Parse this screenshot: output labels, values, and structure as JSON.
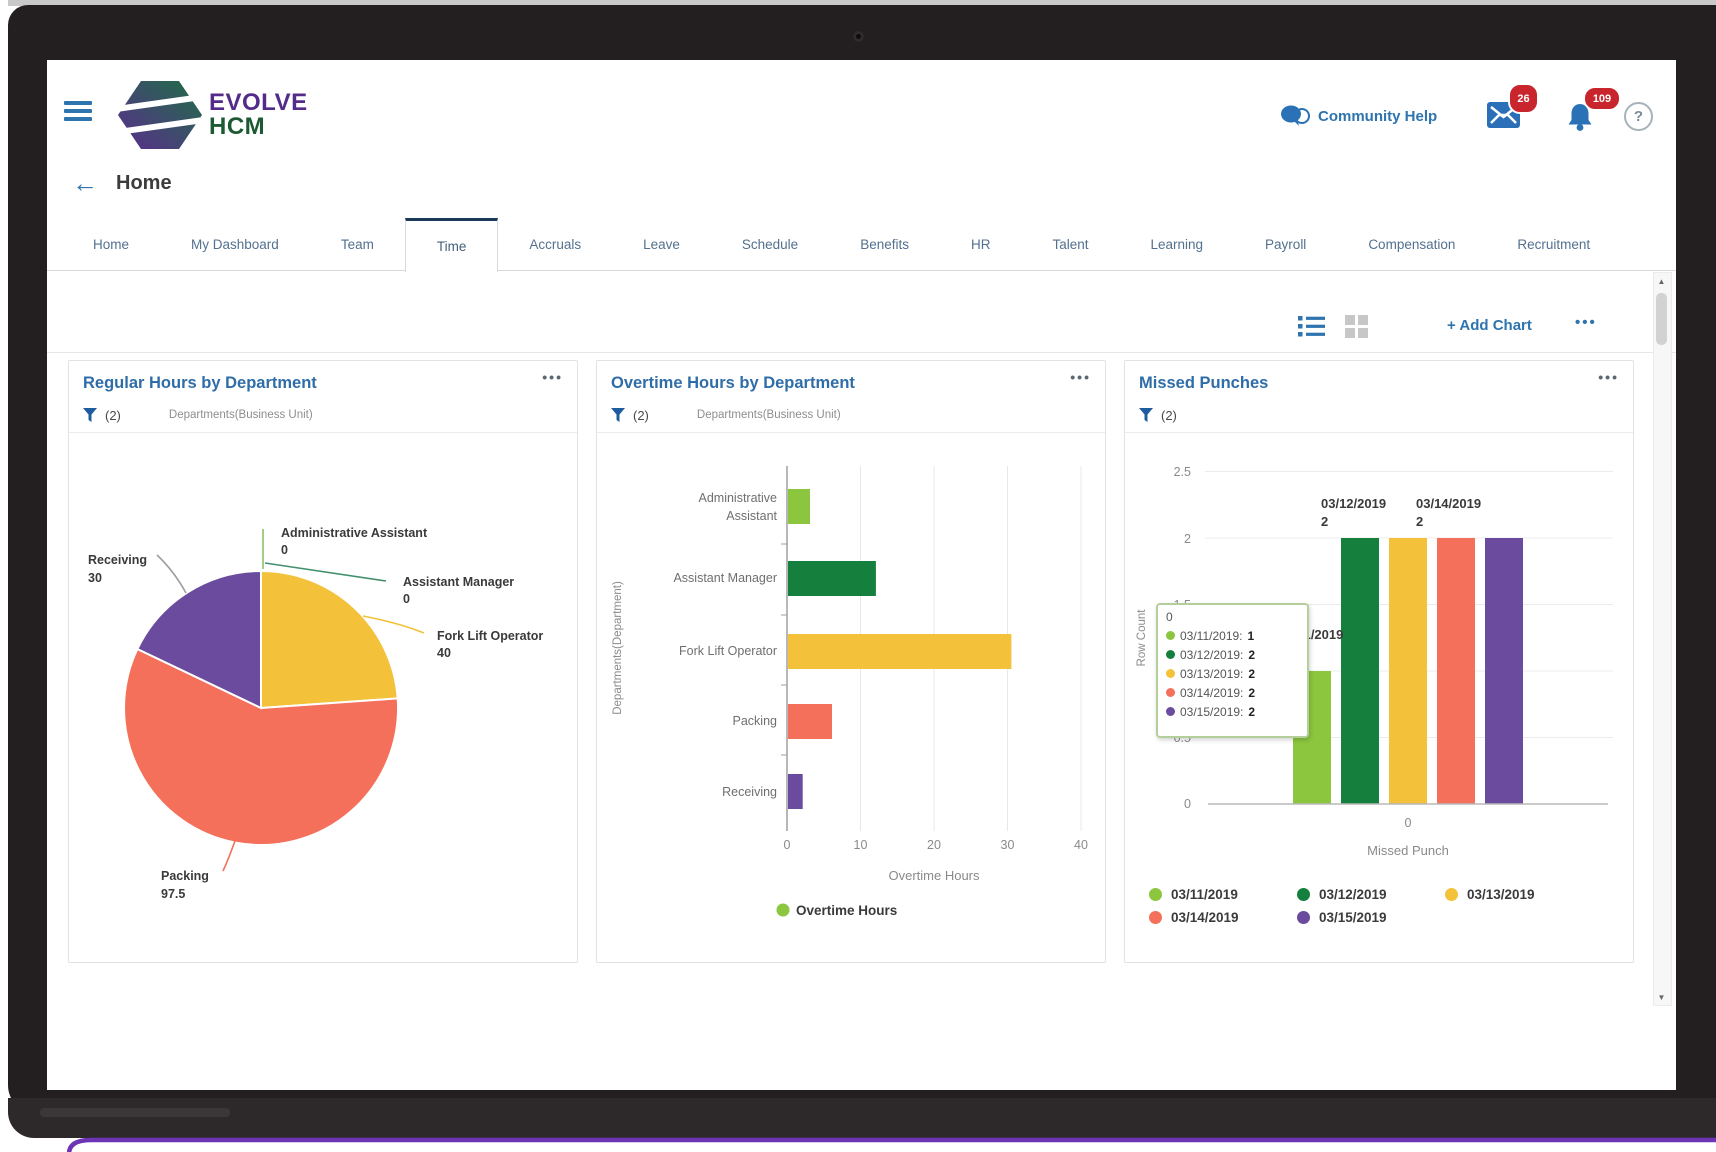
{
  "header": {
    "logo_line1": "EVOLVE",
    "logo_line2": "HCM",
    "community_help": "Community Help",
    "mail_badge": "26",
    "notifications_badge": "109",
    "help_label": "?"
  },
  "back_nav": {
    "arrow": "←",
    "label": "Home"
  },
  "tabs": [
    "Home",
    "My Dashboard",
    "Team",
    "Time",
    "Accruals",
    "Leave",
    "Schedule",
    "Benefits",
    "HR",
    "Talent",
    "Learning",
    "Payroll",
    "Compensation",
    "Recruitment"
  ],
  "active_tab": "Time",
  "toolbar": {
    "add_chart_label": "+ Add Chart",
    "more_label": "•••"
  },
  "scrollbar": {
    "up": "▲",
    "down": "▼"
  },
  "cards": [
    {
      "title": "Regular Hours by Department",
      "more_label": "•••",
      "filter": {
        "count": "(2)",
        "scope": "Departments(Business Unit)"
      },
      "chart_data": {
        "type": "pie",
        "title": "Regular Hours by Department",
        "slices": [
          {
            "label": "Administrative Assistant",
            "value": 0,
            "color": "#8cc63e"
          },
          {
            "label": "Assistant Manager",
            "value": 0,
            "color": "#157f3d"
          },
          {
            "label": "Fork Lift Operator",
            "value": 40,
            "color": "#f3c13a"
          },
          {
            "label": "Packing",
            "value": 97.5,
            "color": "#f4705b"
          },
          {
            "label": "Receiving",
            "value": 30,
            "color": "#6a4b9e"
          }
        ]
      }
    },
    {
      "title": "Overtime Hours by Department",
      "more_label": "•••",
      "filter": {
        "count": "(2)",
        "scope": "Departments(Business Unit)"
      },
      "chart_data": {
        "type": "bar",
        "orientation": "horizontal",
        "title": "Overtime Hours by Department",
        "categories": [
          "Administrative Assistant",
          "Assistant Manager",
          "Fork Lift Operator",
          "Packing",
          "Receiving"
        ],
        "categories_line1": [
          "Administrative",
          "Assistant Manager",
          "Fork Lift Operator",
          "Packing",
          "Receiving"
        ],
        "categories_line2": [
          "Assistant",
          "",
          "",
          "",
          ""
        ],
        "values": [
          3,
          12,
          30.5,
          6,
          2
        ],
        "colors": [
          "#8cc63e",
          "#157f3d",
          "#f3c13a",
          "#f4705b",
          "#6a4b9e"
        ],
        "xticks": [
          "0",
          "10",
          "20",
          "30",
          "40"
        ],
        "xlim": [
          0,
          40
        ],
        "xlabel": "Overtime Hours",
        "ylabel": "Departments(Department)",
        "legend": [
          {
            "label": "Overtime Hours",
            "color": "#8cc63e"
          }
        ]
      }
    },
    {
      "title": "Missed Punches",
      "more_label": "•••",
      "filter": {
        "count": "(2)"
      },
      "chart_data": {
        "type": "bar",
        "orientation": "vertical",
        "title": "Missed Punches",
        "category": "0",
        "series": [
          {
            "label": "03/11/2019",
            "value": 1,
            "color": "#8cc63e"
          },
          {
            "label": "03/12/2019",
            "value": 2,
            "color": "#157f3d"
          },
          {
            "label": "03/13/2019",
            "value": 2,
            "color": "#f3c13a"
          },
          {
            "label": "03/14/2019",
            "value": 2,
            "color": "#f4705b"
          },
          {
            "label": "03/15/2019",
            "value": 2,
            "color": "#6a4b9e"
          }
        ],
        "yticks": [
          "2.5",
          "2",
          "1.5",
          "1",
          "0.5",
          "0"
        ],
        "ylim": [
          0,
          2.5
        ],
        "xtick": "0",
        "xlabel": "Missed Punch",
        "ylabel": "Row Count",
        "tooltip": {
          "title": "0",
          "rows": [
            {
              "label": "03/11/2019:",
              "value": "1"
            },
            {
              "label": "03/12/2019:",
              "value": "2"
            },
            {
              "label": "03/13/2019:",
              "value": "2"
            },
            {
              "label": "03/14/2019:",
              "value": "2"
            },
            {
              "label": "03/15/2019:",
              "value": "2"
            }
          ]
        }
      }
    }
  ]
}
